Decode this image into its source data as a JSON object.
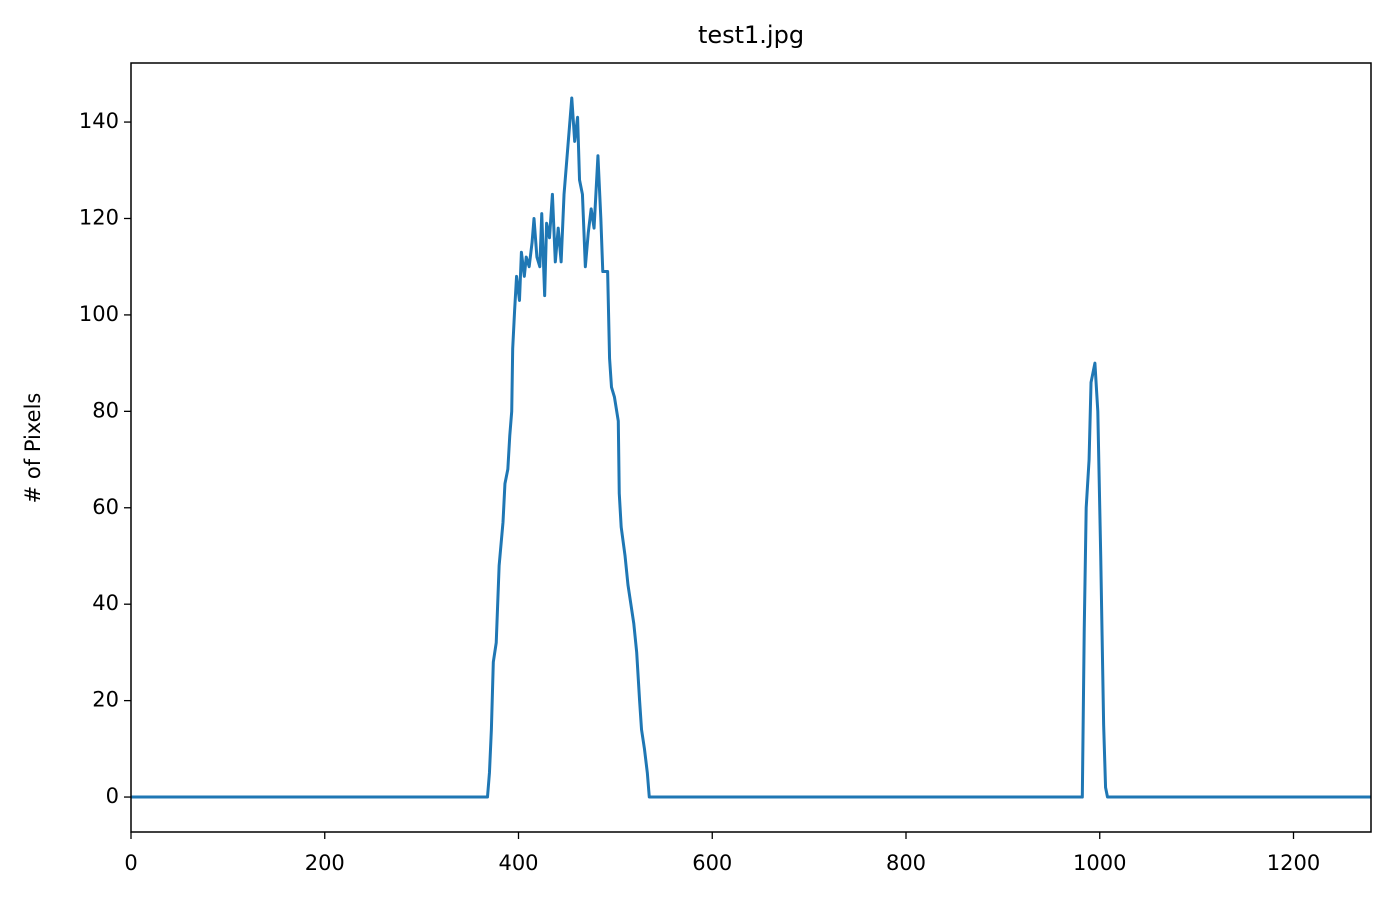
{
  "chart_data": {
    "type": "line",
    "title": "test1.jpg",
    "y_label": "# of Pixels",
    "x": [
      0,
      368,
      370,
      372,
      374,
      377,
      380,
      384,
      386,
      389,
      391,
      393,
      394,
      396,
      398,
      401,
      403,
      406,
      408,
      411,
      414,
      416,
      419,
      422,
      424,
      427,
      429,
      432,
      435,
      438,
      441,
      444,
      447,
      451,
      455,
      458,
      461,
      463,
      466,
      469,
      472,
      475,
      478,
      482,
      485,
      487,
      492,
      494,
      496,
      499,
      503,
      504,
      506,
      510,
      513,
      516,
      519,
      522,
      525,
      527,
      530,
      533,
      535,
      982,
      984,
      986,
      989,
      991,
      995,
      998,
      1001,
      1004,
      1006,
      1008,
      1280
    ],
    "series": [
      {
        "name": "test1.jpg",
        "color": "#1f77b4",
        "values": [
          0,
          0,
          5,
          14,
          28,
          32,
          48,
          57,
          65,
          68,
          75,
          80,
          93,
          101,
          108,
          103,
          113,
          108,
          112,
          110,
          115,
          120,
          112,
          110,
          121,
          104,
          119,
          116,
          125,
          111,
          118,
          111,
          125,
          135,
          145,
          136,
          141,
          128,
          125,
          110,
          117,
          122,
          118,
          133,
          120,
          109,
          109,
          91,
          85,
          83,
          78,
          63,
          56,
          50,
          44,
          40,
          36,
          30,
          20,
          14,
          10,
          5,
          0,
          0,
          35,
          60,
          70,
          86,
          90,
          80,
          50,
          15,
          2,
          0,
          0
        ]
      }
    ],
    "xlim": [
      0,
      1280
    ],
    "ylim": [
      -7.25,
      152.25
    ],
    "xticks": [
      0,
      200,
      400,
      600,
      800,
      1000,
      1200
    ],
    "yticks": [
      0,
      20,
      40,
      60,
      80,
      100,
      120,
      140
    ]
  }
}
